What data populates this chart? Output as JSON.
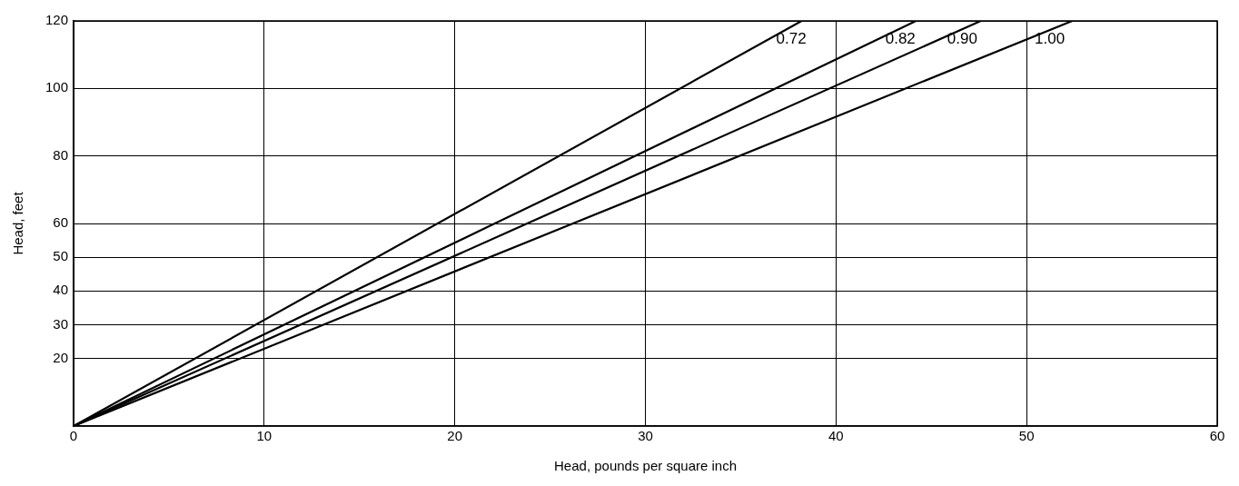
{
  "chart_data": {
    "type": "line",
    "xlabel": "Head, pounds per square inch",
    "ylabel": "Head, feet",
    "xlim": [
      0,
      60
    ],
    "xticks": [
      0,
      10,
      20,
      30,
      40,
      50,
      60
    ],
    "ylim": [
      0,
      120
    ],
    "yticks": [
      20,
      30,
      40,
      50,
      60,
      80,
      100,
      120
    ],
    "grid": true,
    "legend": false,
    "marker": "none",
    "line_style": "solid",
    "series": [
      {
        "name": "0.72",
        "color": "#000000",
        "x": [
          0,
          38.2
        ],
        "values": [
          0,
          120
        ]
      },
      {
        "name": "0.82",
        "color": "#000000",
        "x": [
          0,
          44.2
        ],
        "values": [
          0,
          120
        ]
      },
      {
        "name": "0.90",
        "color": "#000000",
        "x": [
          0,
          47.6
        ],
        "values": [
          0,
          120
        ]
      },
      {
        "name": "1.00",
        "color": "#000000",
        "x": [
          0,
          52.4
        ],
        "values": [
          0,
          120
        ]
      }
    ]
  }
}
